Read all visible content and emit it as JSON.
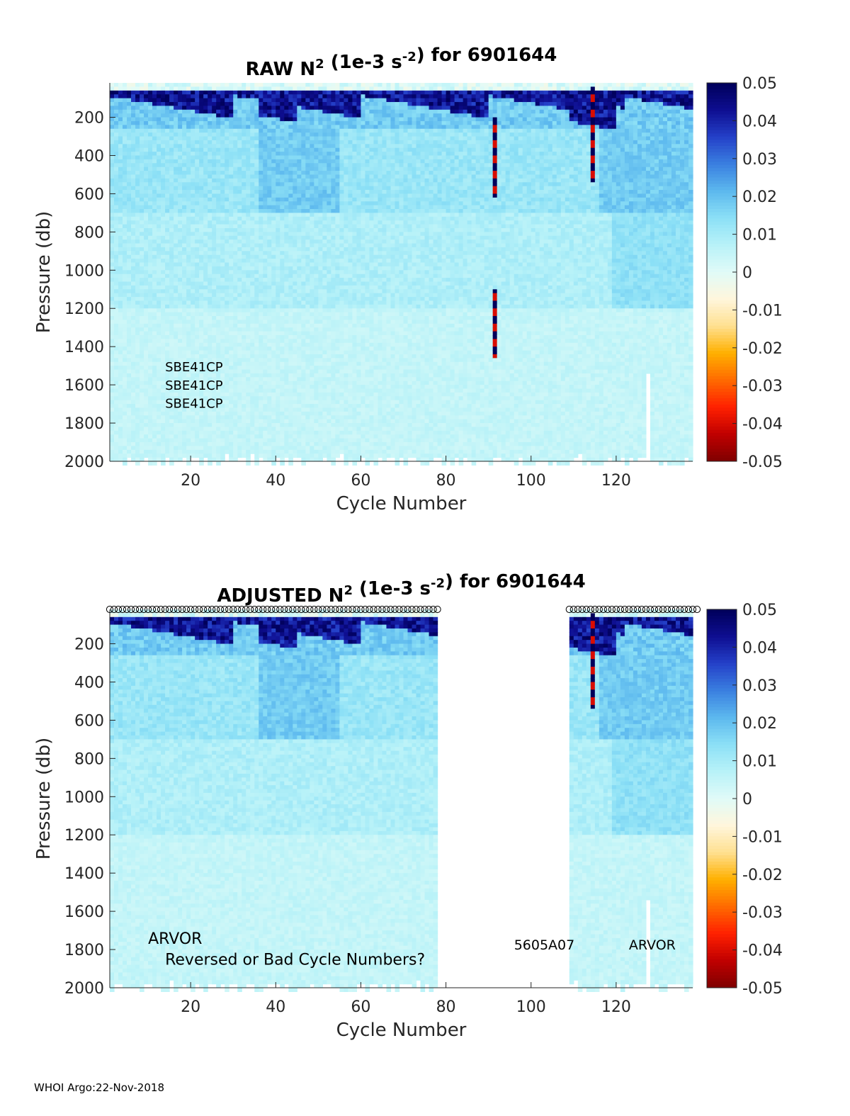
{
  "footer": "WHOI Argo:22-Nov-2018",
  "colors": {
    "colormap": [
      "#7f0000",
      "#c00000",
      "#ff2000",
      "#ff6a00",
      "#ffb000",
      "#ffe090",
      "#fff6dc",
      "#e0fbf8",
      "#b8f2f8",
      "#8ce0f6",
      "#5cb8ee",
      "#3a7fe0",
      "#2440c8",
      "#0e0e90",
      "#00005a"
    ],
    "missing": "#ffffff"
  },
  "chart_data": [
    {
      "type": "heatmap",
      "title": {
        "pre": "RAW N",
        "sup1": "2",
        "mid": " (1e-3 s",
        "sup2": "-2",
        "post": ") for 6901644"
      },
      "xlabel": "Cycle Number",
      "ylabel": "Pressure (db)",
      "xlim": [
        1,
        138
      ],
      "ylim": [
        2000,
        20
      ],
      "y_reversed": true,
      "xticks": [
        20,
        40,
        60,
        80,
        100,
        120
      ],
      "yticks": [
        200,
        400,
        600,
        800,
        1000,
        1200,
        1400,
        1600,
        1800,
        2000
      ],
      "colorbar": {
        "min": -0.05,
        "max": 0.05,
        "ticks": [
          "0.05",
          "0.04",
          "0.03",
          "0.02",
          "0.01",
          "0",
          "-0.01",
          "-0.02",
          "-0.03",
          "-0.04",
          "-0.05"
        ]
      },
      "missing_cycles": [],
      "spike_cycles": [
        {
          "cycle": 91,
          "p_range": [
            200,
            600
          ]
        },
        {
          "cycle": 91,
          "p_range": [
            1100,
            1450
          ]
        },
        {
          "cycle": 114,
          "p_range": [
            40,
            520
          ]
        }
      ],
      "deep_gap_cycle": 127,
      "annotations": [
        {
          "text": "SBE41CP",
          "x": 14,
          "p": 1530,
          "size": 18
        },
        {
          "text": "SBE41CP",
          "x": 14,
          "p": 1625,
          "size": 18
        },
        {
          "text": "SBE41CP",
          "x": 14,
          "p": 1720,
          "size": 18
        }
      ],
      "flag_markers": null,
      "grid": false
    },
    {
      "type": "heatmap",
      "title": {
        "pre": "ADJUSTED N",
        "sup1": "2",
        "mid": " (1e-3 s",
        "sup2": "-2",
        "post": ") for 6901644"
      },
      "xlabel": "Cycle Number",
      "ylabel": "Pressure (db)",
      "xlim": [
        1,
        138
      ],
      "ylim": [
        2000,
        20
      ],
      "y_reversed": true,
      "xticks": [
        20,
        40,
        60,
        80,
        100,
        120
      ],
      "yticks": [
        200,
        400,
        600,
        800,
        1000,
        1200,
        1400,
        1600,
        1800,
        2000
      ],
      "colorbar": {
        "min": -0.05,
        "max": 0.05,
        "ticks": [
          "0.05",
          "0.04",
          "0.03",
          "0.02",
          "0.01",
          "0",
          "-0.01",
          "-0.02",
          "-0.03",
          "-0.04",
          "-0.05"
        ]
      },
      "missing_cycles": [
        78,
        109
      ],
      "spike_cycles": [
        {
          "cycle": 114,
          "p_range": [
            40,
            520
          ]
        }
      ],
      "deep_gap_cycle": 127,
      "annotations": [
        {
          "text": "ARVOR",
          "x": 10,
          "p": 1770,
          "size": 22
        },
        {
          "text": "Reversed or Bad Cycle Numbers?",
          "x": 14,
          "p": 1880,
          "size": 22
        },
        {
          "text": "5605A07",
          "x": 96,
          "p": 1800,
          "size": 19
        },
        {
          "text": "ARVOR",
          "x": 123,
          "p": 1800,
          "size": 19
        }
      ],
      "flag_markers": {
        "ranges": [
          [
            1,
            78
          ],
          [
            109,
            139
          ]
        ],
        "symbol": "circle"
      },
      "grid": false
    }
  ]
}
